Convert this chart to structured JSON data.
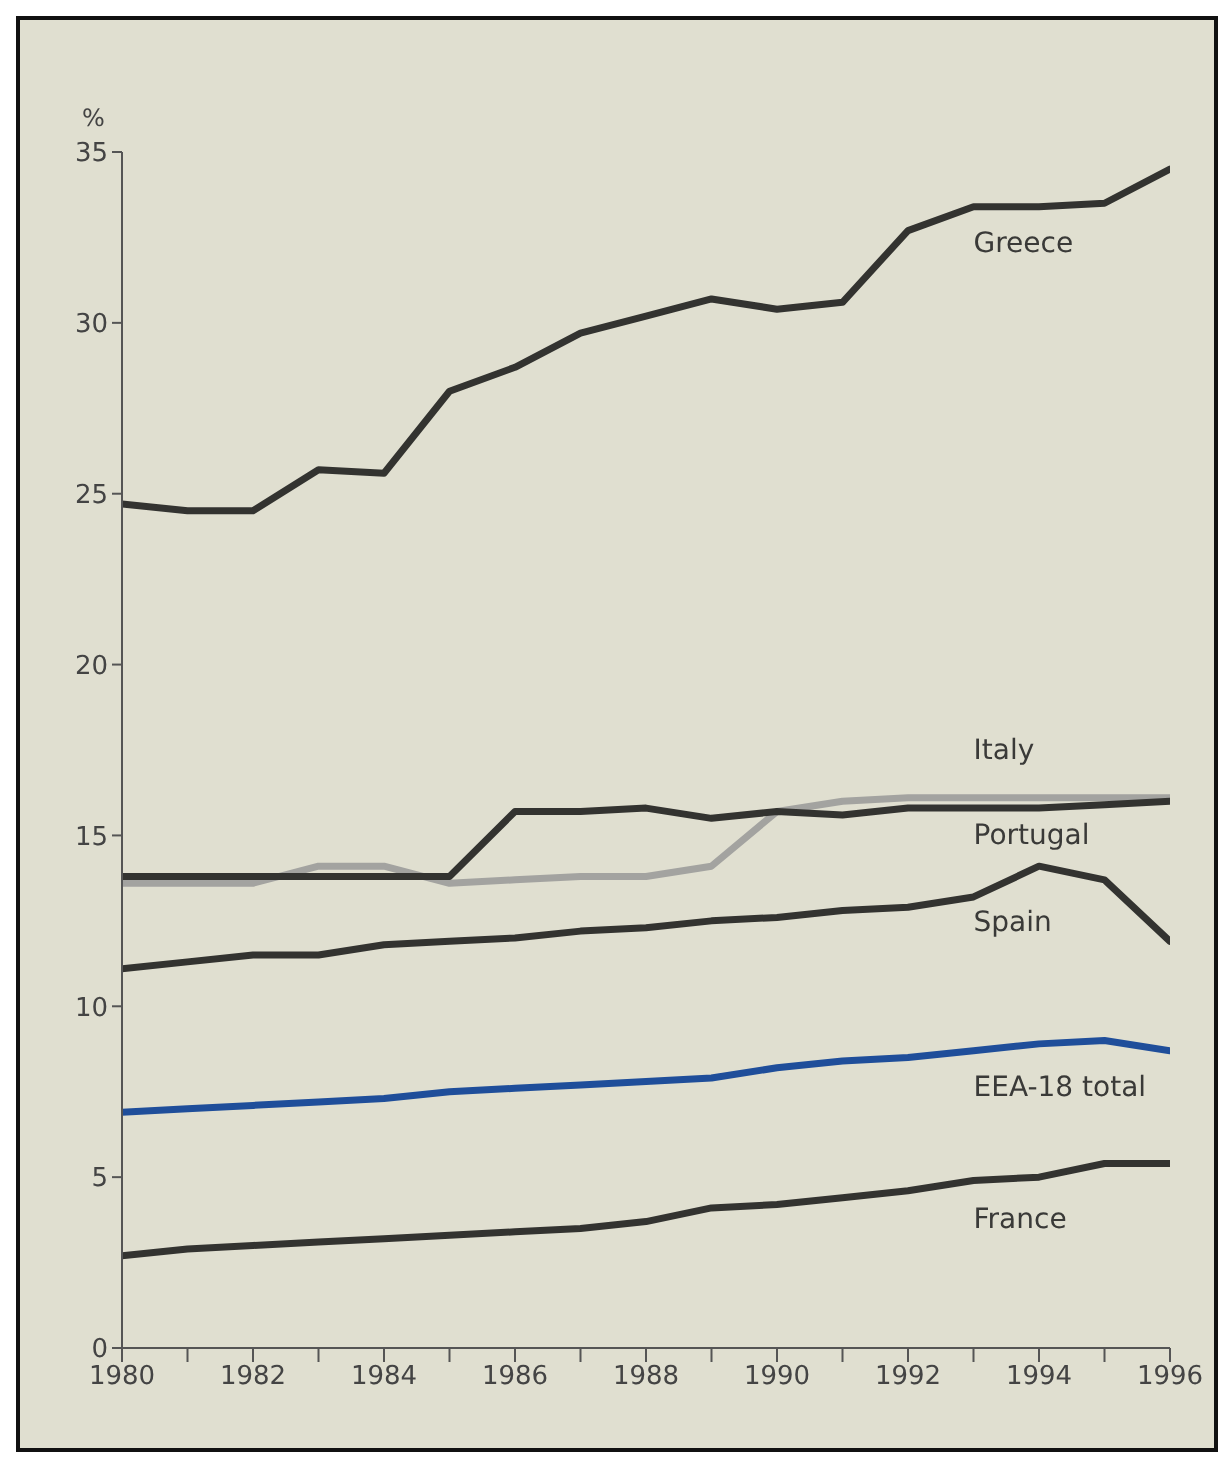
{
  "chart_data": {
    "type": "line",
    "ylabel": "%",
    "x": [
      1980,
      1981,
      1982,
      1983,
      1984,
      1985,
      1986,
      1987,
      1988,
      1989,
      1990,
      1991,
      1992,
      1993,
      1994,
      1995,
      1996
    ],
    "xlim": [
      1980,
      1996
    ],
    "xticks": [
      1980,
      {
        "value": 1981,
        "label": null
      },
      1982,
      {
        "value": 1983,
        "label": null
      },
      1984,
      {
        "value": 1985,
        "label": null
      },
      1986,
      {
        "value": 1987,
        "label": null
      },
      1988,
      {
        "value": 1989,
        "label": null
      },
      1990,
      {
        "value": 1991,
        "label": null
      },
      1992,
      {
        "value": 1993,
        "label": null
      },
      1994,
      {
        "value": 1995,
        "label": null
      },
      1996
    ],
    "ylim": [
      0,
      35
    ],
    "yticks": [
      0,
      5,
      10,
      15,
      20,
      25,
      30,
      35
    ],
    "grid": false,
    "legend": false,
    "marker": "none",
    "line_style": "solid",
    "series": [
      {
        "name": "Greece",
        "color": "#333330",
        "values": [
          24.7,
          24.5,
          24.5,
          25.7,
          25.6,
          28.0,
          28.7,
          29.7,
          30.2,
          30.7,
          30.4,
          30.6,
          32.7,
          33.4,
          33.4,
          33.5,
          34.5
        ]
      },
      {
        "name": "Italy",
        "color": "#a3a3a0",
        "values": [
          13.6,
          13.6,
          13.6,
          14.1,
          14.1,
          13.6,
          13.7,
          13.8,
          13.8,
          14.1,
          15.7,
          16.0,
          16.1,
          16.1,
          16.1,
          16.1,
          16.1
        ]
      },
      {
        "name": "Portugal",
        "color": "#333330",
        "values": [
          13.8,
          13.8,
          13.8,
          13.8,
          13.8,
          13.8,
          15.7,
          15.7,
          15.8,
          15.5,
          15.7,
          15.6,
          15.8,
          15.8,
          15.8,
          15.9,
          16.0
        ]
      },
      {
        "name": "Spain",
        "color": "#333330",
        "values": [
          11.1,
          11.3,
          11.5,
          11.5,
          11.8,
          11.9,
          12.0,
          12.2,
          12.3,
          12.5,
          12.6,
          12.8,
          12.9,
          13.2,
          14.1,
          13.7,
          11.9
        ]
      },
      {
        "name": "EEA-18 total",
        "color": "#1f4e9a",
        "values": [
          6.9,
          7.0,
          7.1,
          7.2,
          7.3,
          7.5,
          7.6,
          7.7,
          7.8,
          7.9,
          8.2,
          8.4,
          8.5,
          8.7,
          8.9,
          9.0,
          8.7
        ]
      },
      {
        "name": "France",
        "color": "#333330",
        "values": [
          2.7,
          2.9,
          3.0,
          3.1,
          3.2,
          3.3,
          3.4,
          3.5,
          3.7,
          4.1,
          4.2,
          4.4,
          4.6,
          4.9,
          5.0,
          5.4,
          5.4
        ]
      }
    ]
  }
}
